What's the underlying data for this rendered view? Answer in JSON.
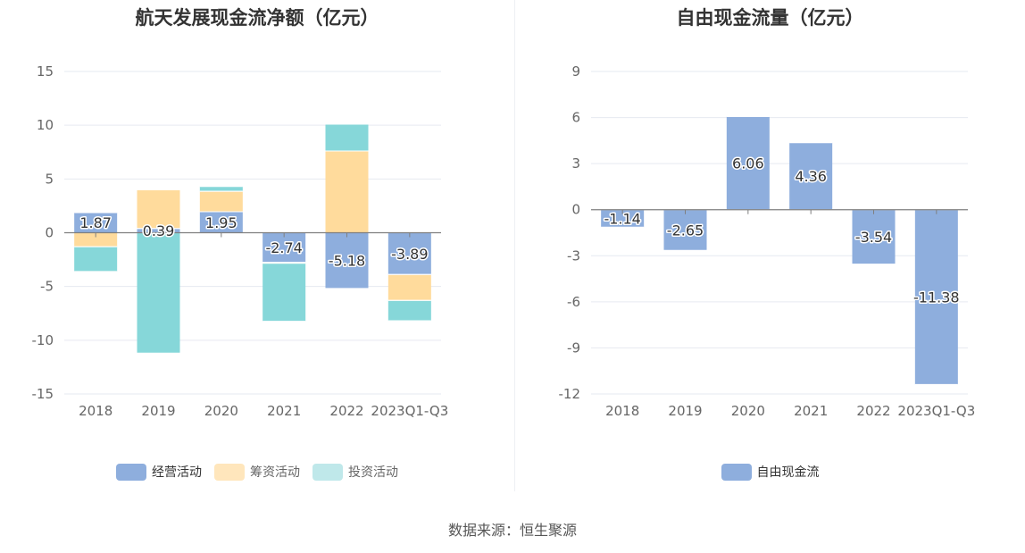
{
  "chart_data": [
    {
      "type": "bar",
      "stacked": true,
      "title": "航天发展现金流净额（亿元）",
      "categories": [
        "2018",
        "2019",
        "2020",
        "2021",
        "2022",
        "2023Q1-Q3"
      ],
      "ylim": [
        -15,
        15
      ],
      "yticks": [
        15,
        10,
        5,
        0,
        -5,
        -10,
        -15
      ],
      "series": [
        {
          "name": "经营活动",
          "color": "#8eaedd",
          "values": [
            1.87,
            0.39,
            1.95,
            -2.74,
            -5.18,
            -3.89
          ],
          "labels": [
            "1.87",
            "0.39",
            "1.95",
            "-2.74",
            "-5.18",
            "-3.89"
          ]
        },
        {
          "name": "筹资活动",
          "color": "#ffdb9c",
          "values": [
            -1.3,
            3.6,
            1.9,
            -0.1,
            7.6,
            -2.4
          ]
        },
        {
          "name": "投资活动",
          "color": "#86d7d9",
          "values": [
            -2.3,
            -11.2,
            0.45,
            -5.4,
            2.5,
            -1.9
          ]
        }
      ]
    },
    {
      "type": "bar",
      "stacked": false,
      "title": "自由现金流量（亿元）",
      "categories": [
        "2018",
        "2019",
        "2020",
        "2021",
        "2022",
        "2023Q1-Q3"
      ],
      "ylim": [
        -12,
        9
      ],
      "yticks": [
        9,
        6,
        3,
        0,
        -3,
        -6,
        -9,
        -12
      ],
      "series": [
        {
          "name": "自由现金流",
          "color": "#8eaedd",
          "values": [
            -1.14,
            -2.65,
            6.06,
            4.36,
            -3.54,
            -11.38
          ],
          "labels": [
            "-1.14",
            "-2.65",
            "6.06",
            "4.36",
            "-3.54",
            "-11.38"
          ]
        }
      ]
    }
  ],
  "legend_left": [
    {
      "name": "经营活动",
      "color": "#8eaedd"
    },
    {
      "name": "筹资活动",
      "color": "#ffdb9c"
    },
    {
      "name": "投资活动",
      "color": "#bfe8ea"
    }
  ],
  "legend_right": [
    {
      "name": "自由现金流",
      "color": "#8eaedd"
    }
  ],
  "source": "数据来源：恒生聚源"
}
